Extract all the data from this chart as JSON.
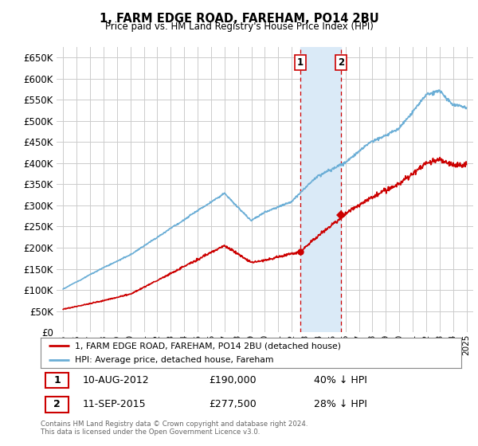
{
  "title": "1, FARM EDGE ROAD, FAREHAM, PO14 2BU",
  "subtitle": "Price paid vs. HM Land Registry's House Price Index (HPI)",
  "hpi_color": "#6baed6",
  "price_color": "#cc0000",
  "background_color": "#ffffff",
  "plot_bg_color": "#ffffff",
  "grid_color": "#cccccc",
  "ylim": [
    0,
    675000
  ],
  "yticks": [
    0,
    50000,
    100000,
    150000,
    200000,
    250000,
    300000,
    350000,
    400000,
    450000,
    500000,
    550000,
    600000,
    650000
  ],
  "sale1_date": "10-AUG-2012",
  "sale1_price": 190000,
  "sale1_price_str": "£190,000",
  "sale1_pct": "40%",
  "sale1_label": "1",
  "sale1_year": 2012.614,
  "sale2_date": "11-SEP-2015",
  "sale2_price": 277500,
  "sale2_price_str": "£277,500",
  "sale2_pct": "28%",
  "sale2_label": "2",
  "sale2_year": 2015.692,
  "legend_line1": "1, FARM EDGE ROAD, FAREHAM, PO14 2BU (detached house)",
  "legend_line2": "HPI: Average price, detached house, Fareham",
  "footer": "Contains HM Land Registry data © Crown copyright and database right 2024.\nThis data is licensed under the Open Government Licence v3.0.",
  "highlight_color": "#daeaf7",
  "sale1_marker": "o",
  "sale2_marker": "D"
}
